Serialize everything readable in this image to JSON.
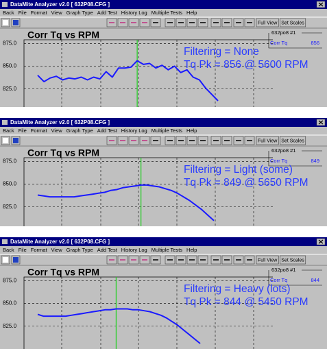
{
  "windows": [
    {
      "title_bar": "DataMite Analyzer v2.0  [ 632P08.CFG ]",
      "menu": [
        "Back",
        "File",
        "Format",
        "View",
        "Graph Type",
        "Add Test",
        "History Log",
        "Multiple Tests",
        "Help"
      ],
      "toolbar": [
        "Full View",
        "Set Scales"
      ],
      "chart_data": {
        "type": "line",
        "title": "Corr Tq vs RPM",
        "series": [
          {
            "name": "Corr Tq",
            "color": "#1a1aff",
            "values": [
              840,
              833,
              837,
              839,
              835,
              837,
              836,
              838,
              835,
              838,
              836,
              844,
              838,
              848,
              848,
              849,
              856,
              852,
              853,
              848,
              851,
              846,
              850,
              843,
              846,
              838,
              835,
              826,
              819,
              812
            ]
          }
        ],
        "ylim": [
          806,
          879
        ],
        "yticks": [
          {
            "value": 825,
            "label": "825.0"
          },
          {
            "value": 850,
            "label": "850.0"
          },
          {
            "value": 875,
            "label": "875.0"
          }
        ],
        "grid": true,
        "legend": {
          "title": "632po8  #1",
          "value": 856
        },
        "annotations": [
          "Filtering = None",
          "Tq Pk = 856 @ 5600 RPM"
        ]
      }
    },
    {
      "title_bar": "DataMite Analyzer v2.0  [ 632P08.CFG ]",
      "menu": [
        "Back",
        "File",
        "Format",
        "View",
        "Graph Type",
        "Add Test",
        "History Log",
        "Multiple Tests",
        "Help"
      ],
      "toolbar": [
        "Full View",
        "Set Scales"
      ],
      "chart_data": {
        "type": "line",
        "title": "Corr Tq vs RPM",
        "series": [
          {
            "name": "Corr Tq",
            "color": "#1a1aff",
            "values": [
              838,
              837,
              836,
              836,
              836,
              836,
              836,
              837,
              838,
              839,
              840,
              841,
              843,
              844,
              846,
              847,
              848,
              849,
              849,
              848,
              847,
              845,
              843,
              840,
              836,
              832,
              827,
              822,
              816,
              810
            ]
          }
        ],
        "ylim": [
          806,
          879
        ],
        "yticks": [
          {
            "value": 825,
            "label": "825.0"
          },
          {
            "value": 850,
            "label": "850.0"
          },
          {
            "value": 875,
            "label": "875.0"
          }
        ],
        "grid": true,
        "legend": {
          "title": "632po8  #1",
          "value": 849
        },
        "annotations": [
          "Filtering = Light (some)",
          "Tq Pk = 849 @ 5650 RPM"
        ]
      }
    },
    {
      "title_bar": "DataMite Analyzer v2.0  [ 632P08.CFG ]",
      "menu": [
        "Back",
        "File",
        "Format",
        "View",
        "Graph Type",
        "Add Test",
        "History Log",
        "Multiple Tests",
        "Help"
      ],
      "toolbar": [
        "Full View",
        "Set Scales"
      ],
      "chart_data": {
        "type": "line",
        "title": "Corr Tq vs RPM",
        "series": [
          {
            "name": "Corr Tq",
            "color": "#1a1aff",
            "values": [
              838,
              836,
              836,
              836,
              836,
              836,
              837,
              838,
              839,
              840,
              841,
              842,
              843,
              843,
              844,
              844,
              844,
              843,
              843,
              842,
              841,
              839,
              837,
              834,
              830,
              826,
              821,
              816,
              811,
              806
            ]
          }
        ],
        "ylim": [
          806,
          879
        ],
        "yticks": [
          {
            "value": 825,
            "label": "825.0"
          },
          {
            "value": 850,
            "label": "850.0"
          },
          {
            "value": 875,
            "label": "875.0"
          }
        ],
        "grid": true,
        "legend": {
          "title": "632po8  #1",
          "value": 844
        },
        "annotations": [
          "Filtering = Heavy (lots)",
          "Tq Pk = 844 @ 5450 RPM"
        ]
      }
    }
  ]
}
